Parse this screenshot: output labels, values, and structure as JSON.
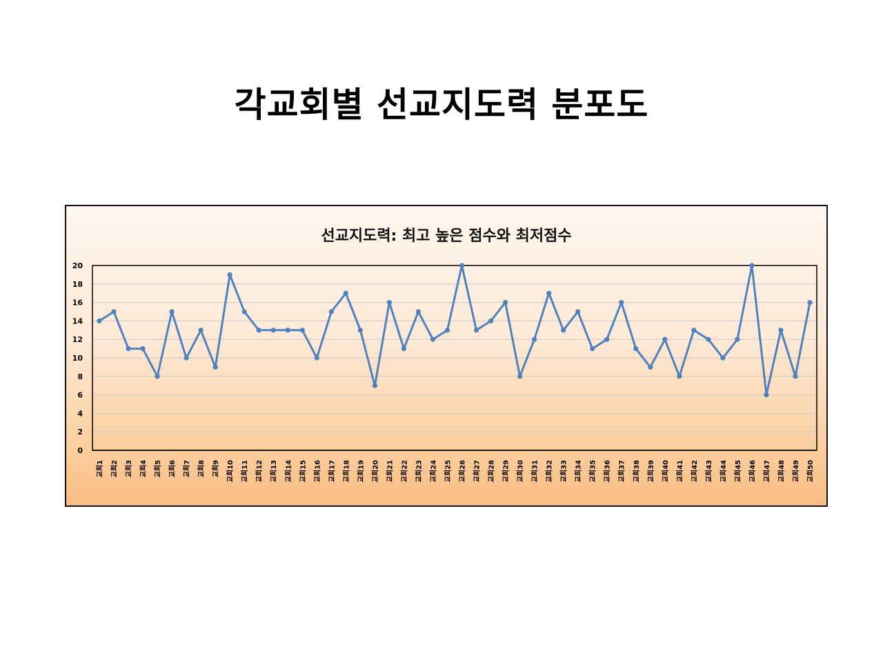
{
  "slide": {
    "title": "각교회별 선교지도력 분포도"
  },
  "chart_data": {
    "type": "line",
    "title": "선교지도력: 최고 높은 점수와 최저점수",
    "xlabel": "",
    "ylabel": "",
    "ylim": [
      0,
      20
    ],
    "yticks": [
      0,
      2,
      4,
      6,
      8,
      10,
      12,
      14,
      16,
      18,
      20
    ],
    "grid": true,
    "legend": "none",
    "categories": [
      "교회1",
      "교회2",
      "교회3",
      "교회4",
      "교회5",
      "교회6",
      "교회7",
      "교회8",
      "교회9",
      "교회10",
      "교회11",
      "교회12",
      "교회13",
      "교회14",
      "교회15",
      "교회16",
      "교회17",
      "교회18",
      "교회19",
      "교회20",
      "교회21",
      "교회22",
      "교회23",
      "교회24",
      "교회25",
      "교회26",
      "교회27",
      "교회28",
      "교회29",
      "교회30",
      "교회31",
      "교회32",
      "교회33",
      "교회34",
      "교회35",
      "교회36",
      "교회37",
      "교회38",
      "교회39",
      "교회40",
      "교회41",
      "교회42",
      "교회43",
      "교회44",
      "교회45",
      "교회46",
      "교회47",
      "교회48",
      "교회49",
      "교회50"
    ],
    "series": [
      {
        "values": [
          14,
          15,
          11,
          11,
          8,
          15,
          10,
          13,
          9,
          19,
          15,
          13,
          13,
          13,
          13,
          10,
          15,
          17,
          13,
          7,
          16,
          11,
          15,
          12,
          13,
          20,
          13,
          14,
          16,
          8,
          12,
          17,
          13,
          15,
          11,
          12,
          16,
          11,
          9,
          12,
          8,
          13,
          12,
          10,
          12,
          20,
          6,
          13,
          8,
          16
        ],
        "color": "#4f81bd"
      }
    ],
    "colors": {
      "line": "#4f81bd",
      "grid": "#c9c9c9",
      "plot_border": "#000000"
    }
  }
}
